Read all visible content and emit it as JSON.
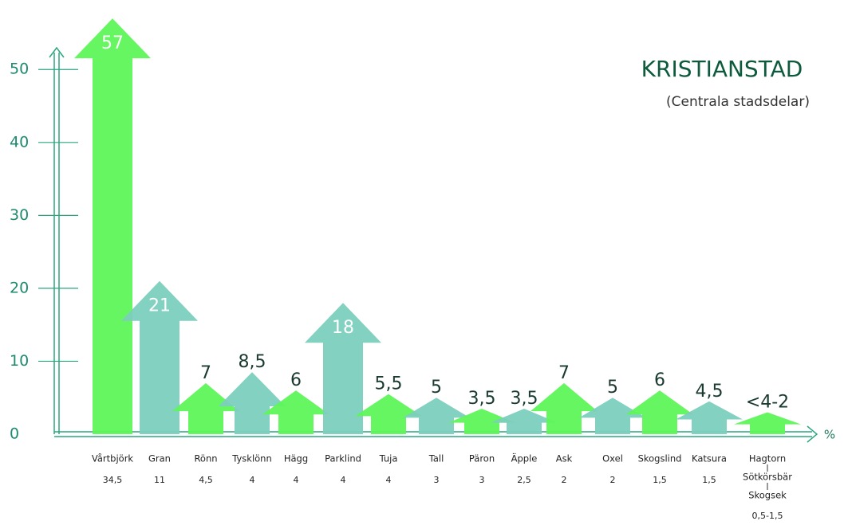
{
  "chart_data": {
    "type": "arrow-bar",
    "title": "KRISTIANSTAD",
    "subtitle": "(Centrala stadsdelar)",
    "x_unit": "%",
    "categories": [
      "Vårtbjörk",
      "Gran",
      "Rönn",
      "Tysklönn",
      "Hägg",
      "Parklind",
      "Tuja",
      "Tall",
      "Päron",
      "Äpple",
      "Ask",
      "Oxel",
      "Skogslind",
      "Katsura",
      [
        "Hagtorn",
        "Sötkörsbär",
        "Skogsek"
      ]
    ],
    "percent_labels": [
      "34,5",
      "11",
      "4,5",
      "4",
      "4",
      "4",
      "4",
      "3",
      "3",
      "2,5",
      "2",
      "2",
      "1,5",
      "1,5",
      "0,5-1,5"
    ],
    "values": [
      57,
      21,
      7,
      8.5,
      6,
      18,
      5.5,
      5,
      3.5,
      3.5,
      7,
      5,
      6,
      4.5,
      3
    ],
    "value_labels": [
      "57",
      "21",
      "7",
      "8,5",
      "6",
      "18",
      "5,5",
      "5",
      "3,5",
      "3,5",
      "7",
      "5",
      "6",
      "4,5",
      "<4-2"
    ],
    "colors": [
      "#5ef55a",
      "#7ccfbd",
      "#5ef55a",
      "#7ccfbd",
      "#5ef55a",
      "#7ccfbd",
      "#5ef55a",
      "#7ccfbd",
      "#5ef55a",
      "#7ccfbd",
      "#5ef55a",
      "#7ccfbd",
      "#5ef55a",
      "#7ccfbd",
      "#5ef55a"
    ],
    "ylim": [
      0,
      58
    ],
    "yticks": [
      0,
      10,
      20,
      30,
      40,
      50
    ]
  }
}
